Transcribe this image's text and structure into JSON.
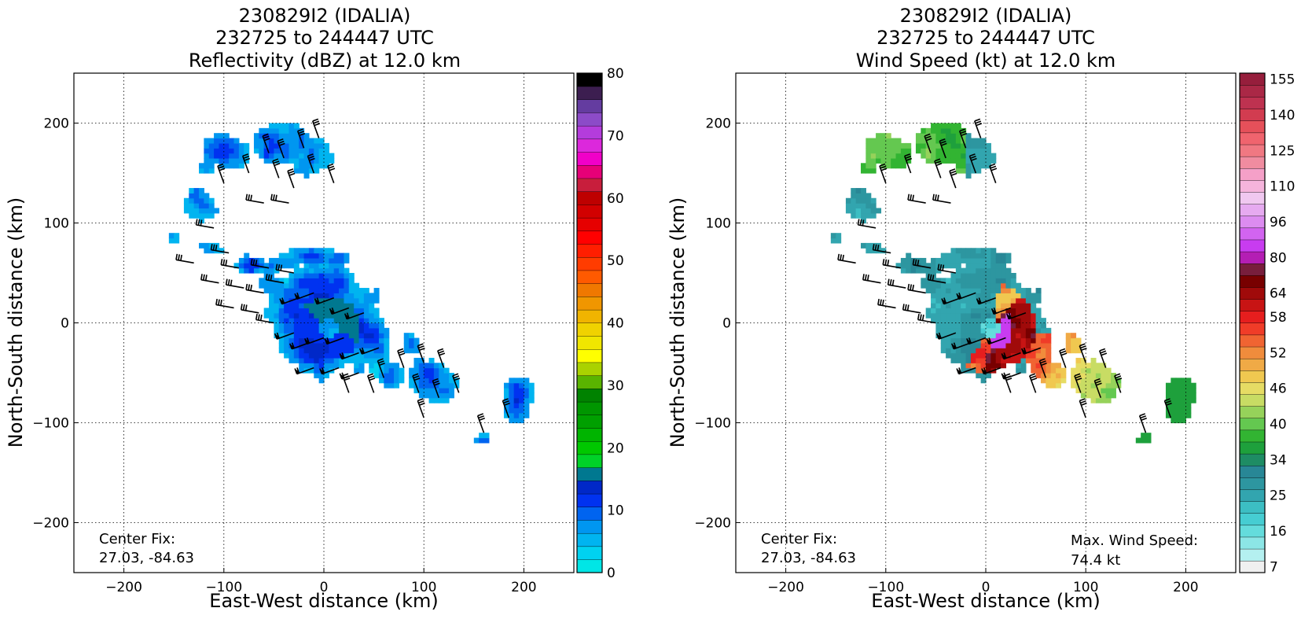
{
  "chart_data": [
    {
      "type": "heatmap",
      "title_lines": [
        "230829I2 (IDALIA)",
        "232725 to 244447 UTC",
        "Reflectivity (dBZ) at 12.0 km"
      ],
      "xlabel": "East-West distance (km)",
      "ylabel": "North-South distance (km)",
      "xlim": [
        -250,
        250
      ],
      "ylim": [
        -250,
        250
      ],
      "xticks": [
        -200,
        -100,
        0,
        100,
        200
      ],
      "xtick_labels": [
        "−200",
        "−100",
        "0",
        "100",
        "200"
      ],
      "yticks": [
        -200,
        -100,
        0,
        100,
        200
      ],
      "ytick_labels": [
        "−200",
        "−100",
        "0",
        "100",
        "200"
      ],
      "grid": true,
      "annotation": {
        "label": "Center Fix:",
        "value": "27.03, -84.63"
      },
      "colorbar": {
        "range": [
          0,
          80
        ],
        "ticks": [
          0,
          10,
          20,
          30,
          40,
          50,
          60,
          70,
          80
        ],
        "colors": [
          "#00e6e6",
          "#00d2f0",
          "#00b4f0",
          "#0096f0",
          "#0064f0",
          "#0032f0",
          "#0028c8",
          "#007890",
          "#00d228",
          "#00c800",
          "#00b400",
          "#00a000",
          "#009600",
          "#008200",
          "#5ab400",
          "#aad200",
          "#ffff00",
          "#f0e600",
          "#f0d200",
          "#f0b400",
          "#f09600",
          "#f07800",
          "#ff5a00",
          "#ff3c00",
          "#ff1e00",
          "#ff0000",
          "#e60000",
          "#d20000",
          "#be0000",
          "#c81e3c",
          "#e60078",
          "#f000c8",
          "#dc28dc",
          "#b43cdc",
          "#8c4bc8",
          "#643ca0",
          "#3c1e50",
          "#000000"
        ]
      },
      "field": "reflectivity"
    },
    {
      "type": "heatmap",
      "title_lines": [
        "230829I2 (IDALIA)",
        "232725 to 244447 UTC",
        "Wind Speed (kt) at 12.0 km"
      ],
      "xlabel": "East-West distance (km)",
      "ylabel": "North-South distance (km)",
      "xlim": [
        -250,
        250
      ],
      "ylim": [
        -250,
        250
      ],
      "xticks": [
        -200,
        -100,
        0,
        100,
        200
      ],
      "xtick_labels": [
        "−200",
        "−100",
        "0",
        "100",
        "200"
      ],
      "yticks": [
        -200,
        -100,
        0,
        100,
        200
      ],
      "ytick_labels": [
        "−200",
        "−100",
        "0",
        "100",
        "200"
      ],
      "grid": true,
      "annotation": {
        "label": "Center Fix:",
        "value": "27.03, -84.63"
      },
      "max_wind": {
        "label": "Max. Wind Speed:",
        "value": "74.4 kt"
      },
      "colorbar": {
        "tick_labels": [
          "7",
          "16",
          "25",
          "34",
          "40",
          "46",
          "52",
          "58",
          "64",
          "80",
          "96",
          "110",
          "125",
          "140",
          "155"
        ],
        "colors": [
          "#f0f0f0",
          "#b4f0f0",
          "#8ce6e6",
          "#64dcdc",
          "#46cdd2",
          "#3cbec3",
          "#32a5af",
          "#2d96a0",
          "#288796",
          "#1e8c64",
          "#1ea03c",
          "#32b432",
          "#64c850",
          "#96d25a",
          "#c8dc64",
          "#e6dc64",
          "#f0c850",
          "#f0aa46",
          "#f08c3c",
          "#f06432",
          "#f03c28",
          "#e61e1e",
          "#c81414",
          "#a00a0a",
          "#780000",
          "#781e3c",
          "#b41eb4",
          "#c83cf0",
          "#d264f0",
          "#dc8cf0",
          "#e6aaf0",
          "#f0c8f0",
          "#f5b4dc",
          "#f5a0c8",
          "#f08ca0",
          "#f07882",
          "#f0646e",
          "#e6505a",
          "#d23c50",
          "#be3250",
          "#aa2846",
          "#961e3c"
        ]
      },
      "field": "wind_speed"
    }
  ]
}
